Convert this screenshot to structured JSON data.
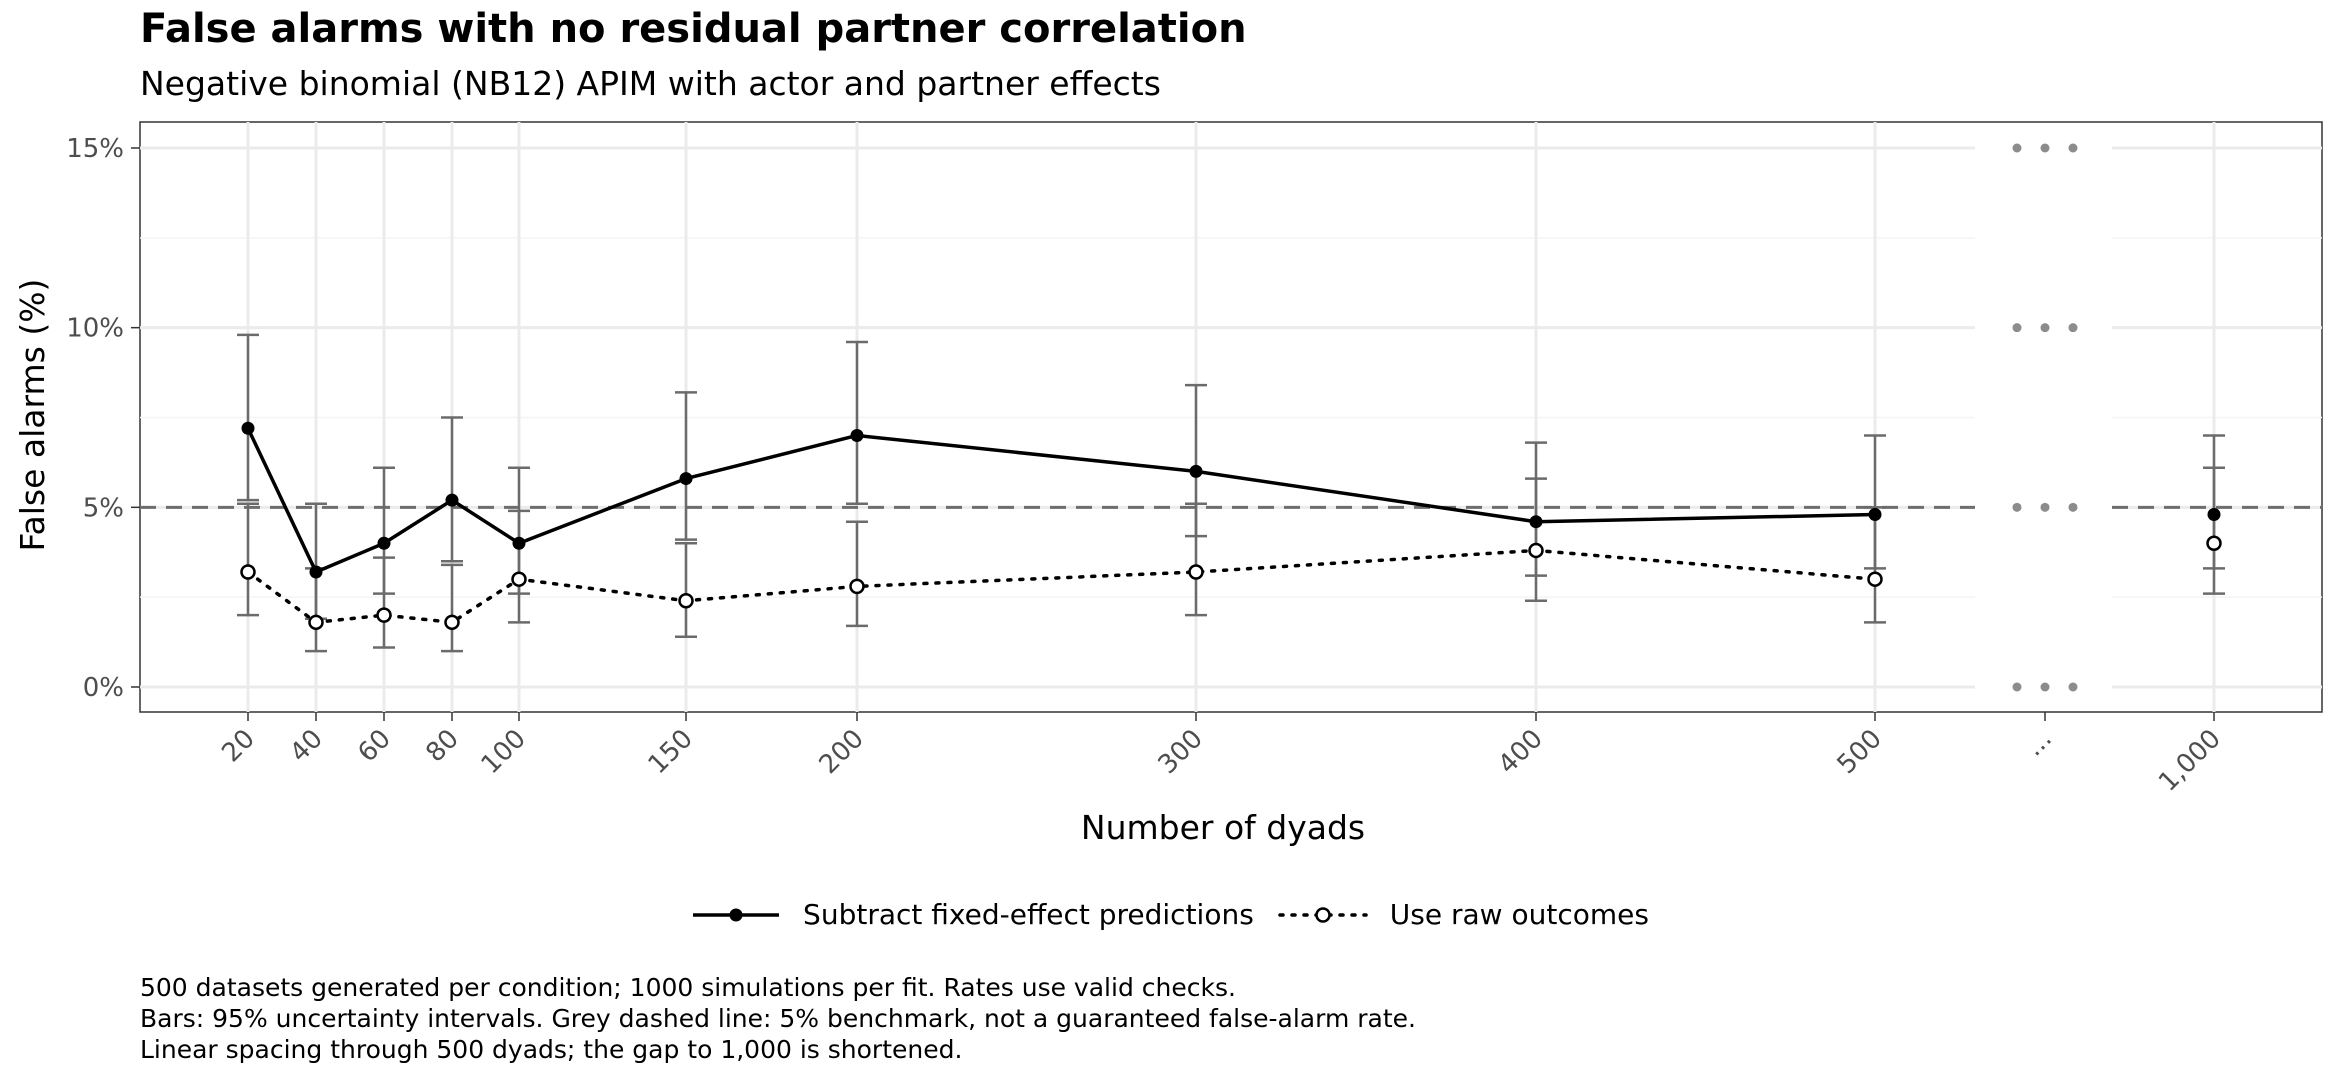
{
  "chart_data": {
    "type": "line",
    "title": "False alarms with no residual partner correlation",
    "subtitle": "Negative binomial (NB12) APIM with actor and partner effects",
    "xlabel": "Number of dyads",
    "ylabel": "False alarms (%)",
    "x_ticks": [
      "20",
      "40",
      "60",
      "80",
      "100",
      "150",
      "200",
      "300",
      "400",
      "500",
      "...",
      "1,000"
    ],
    "y_ticks": [
      "0%",
      "5%",
      "10%",
      "15%"
    ],
    "ylim": [
      0,
      15
    ],
    "benchmark": 5,
    "grid": true,
    "legend_position": "bottom",
    "series": [
      {
        "name": "Subtract fixed-effect predictions",
        "style": "solid",
        "marker": "filled",
        "x": [
          20,
          40,
          60,
          80,
          100,
          150,
          200,
          300,
          400,
          500,
          1000
        ],
        "values": [
          7.2,
          3.2,
          4.0,
          5.2,
          4.0,
          5.8,
          7.0,
          6.0,
          4.6,
          4.8,
          4.8
        ],
        "lower": [
          5.2,
          1.9,
          2.6,
          3.5,
          2.6,
          4.1,
          5.1,
          4.2,
          3.1,
          3.3,
          3.3
        ],
        "upper": [
          9.8,
          5.1,
          6.1,
          7.5,
          6.1,
          8.2,
          9.6,
          8.4,
          6.8,
          7.0,
          7.0
        ]
      },
      {
        "name": "Use raw outcomes",
        "style": "dotted",
        "marker": "open",
        "x": [
          20,
          40,
          60,
          80,
          100,
          150,
          200,
          300,
          400,
          500,
          1000
        ],
        "values": [
          3.2,
          1.8,
          2.0,
          1.8,
          3.0,
          2.4,
          2.8,
          3.2,
          3.8,
          3.0,
          4.0
        ],
        "lower": [
          2.0,
          1.0,
          1.1,
          1.0,
          1.8,
          1.4,
          1.7,
          2.0,
          2.4,
          1.8,
          2.6
        ],
        "upper": [
          5.1,
          3.3,
          3.6,
          3.4,
          4.9,
          4.0,
          4.6,
          5.1,
          5.8,
          5.0,
          6.1
        ]
      }
    ]
  },
  "caption": [
    "500 datasets generated per condition; 1000 simulations per fit. Rates use valid checks.",
    "Bars: 95% uncertainty intervals. Grey dashed line: 5% benchmark, not a guaranteed false-alarm rate.",
    "Linear spacing through 500 dyads; the gap to 1,000 is shortened."
  ]
}
